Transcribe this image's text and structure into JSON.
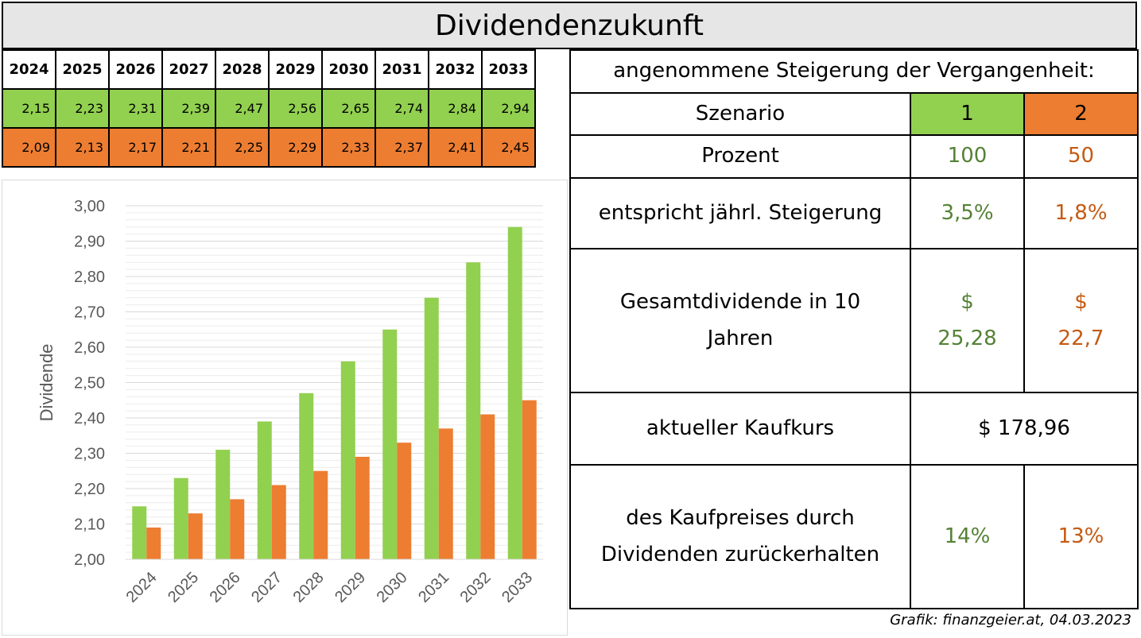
{
  "title": "Dividendenzukunft",
  "table": {
    "years": [
      "2024",
      "2025",
      "2026",
      "2027",
      "2028",
      "2029",
      "2030",
      "2031",
      "2032",
      "2033"
    ],
    "scenario1": [
      "2,15",
      "2,23",
      "2,31",
      "2,39",
      "2,47",
      "2,56",
      "2,65",
      "2,74",
      "2,84",
      "2,94"
    ],
    "scenario2": [
      "2,09",
      "2,13",
      "2,17",
      "2,21",
      "2,25",
      "2,29",
      "2,33",
      "2,37",
      "2,41",
      "2,45"
    ]
  },
  "info": {
    "heading": "angenommene Steigerung der Vergangenheit:",
    "szenario_label": "Szenario",
    "szenario_1": "1",
    "szenario_2": "2",
    "prozent_label": "Prozent",
    "prozent_1": "100",
    "prozent_2": "50",
    "steigerung_label": "entspricht jährl. Steigerung",
    "steigerung_1": "3,5%",
    "steigerung_2": "1,8%",
    "gesamt_label_line1": "Gesamtdividende in 10",
    "gesamt_label_line2": "Jahren",
    "gesamt_1_line1": "$",
    "gesamt_1_line2": "25,28",
    "gesamt_2_line1": "$",
    "gesamt_2_line2": "22,7",
    "kaufkurs_label": "aktueller Kaufkurs",
    "kaufkurs_value": "$ 178,96",
    "kaufpreis_label_line1": "des Kaufpreises durch",
    "kaufpreis_label_line2": "Dividenden zurückerhalten",
    "kaufpreis_1": "14%",
    "kaufpreis_2": "13%"
  },
  "colors": {
    "green": "#92d050",
    "orange": "#ed7d31",
    "green_text": "#548235",
    "orange_text": "#c55a11"
  },
  "credit": "Grafik: finanzgeier.at, 04.03.2023",
  "chart_data": {
    "type": "bar",
    "categories": [
      "2024",
      "2025",
      "2026",
      "2027",
      "2028",
      "2029",
      "2030",
      "2031",
      "2032",
      "2033"
    ],
    "series": [
      {
        "values": [
          2.15,
          2.23,
          2.31,
          2.39,
          2.47,
          2.56,
          2.65,
          2.74,
          2.84,
          2.94
        ],
        "color": "#92d050"
      },
      {
        "values": [
          2.09,
          2.13,
          2.17,
          2.21,
          2.25,
          2.29,
          2.33,
          2.37,
          2.41,
          2.45
        ],
        "color": "#ed7d31"
      }
    ],
    "ylabel": "Dividende",
    "ylim": [
      2.0,
      3.0
    ],
    "yticks": [
      "2,00",
      "2,10",
      "2,20",
      "2,30",
      "2,40",
      "2,50",
      "2,60",
      "2,70",
      "2,80",
      "2,90",
      "3,00"
    ],
    "grid": true
  }
}
